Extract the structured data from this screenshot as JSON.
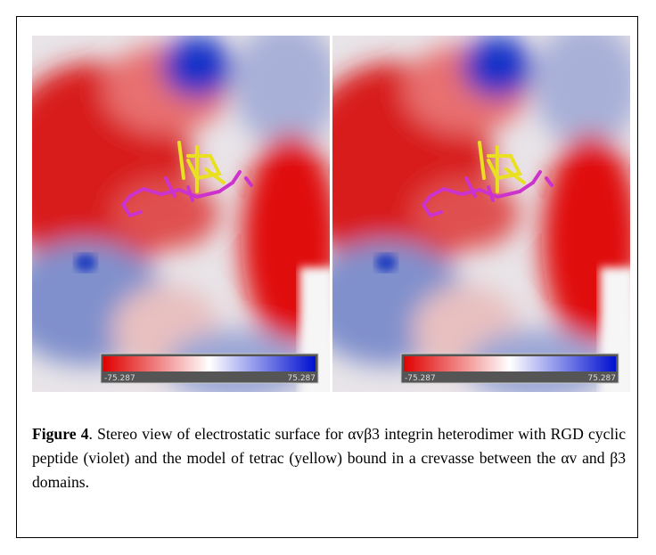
{
  "figure": {
    "panels": [
      {
        "scale_min_label": "-75.287",
        "scale_max_label": "75.287"
      },
      {
        "scale_min_label": "-75.287",
        "scale_max_label": "75.287"
      }
    ],
    "caption": {
      "label": "Figure 4",
      "text": ". Stereo view of electrostatic surface for αvβ3 integrin heterodimer with RGD cyclic peptide (violet) and the model of tetrac (yellow) bound in a crevasse between the αv and β3 domains."
    }
  }
}
